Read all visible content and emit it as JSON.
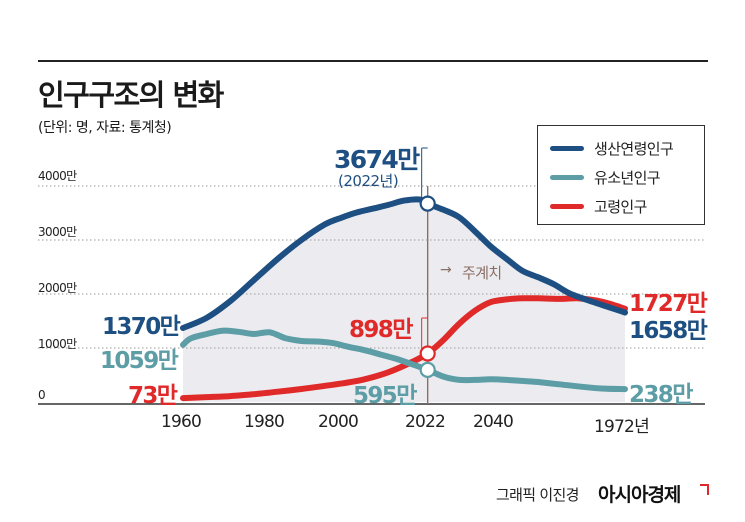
{
  "title": "인구구조의 변화",
  "unit_note": "(단위: 명, 자료: 통계청)",
  "credit": "그래픽 이진경",
  "brand": "아시아경제",
  "colors": {
    "working": "#1e4f82",
    "youth": "#5c9da6",
    "elderly": "#e02a2a",
    "marker": "#8a6f66",
    "band": "#ececf0"
  },
  "peak_annotation": {
    "value": "3674만",
    "year": "(2022년)"
  },
  "estimate_label": "주계치",
  "value_labels": {
    "working_start": "1370만",
    "working_end": "1658만",
    "youth_start": "1059만",
    "youth_2022": "595만",
    "youth_end": "238만",
    "elderly_start": "73만",
    "elderly_2022": "898만",
    "elderly_end": "1727만"
  },
  "chart_data": {
    "type": "line",
    "title": "인구구조의 변화",
    "ylabel": "",
    "xlabel": "",
    "y_ticks": [
      "0",
      "1000만",
      "2000만",
      "3000만",
      "4000만"
    ],
    "x_ticks": [
      "1960",
      "1980",
      "2000",
      "2022",
      "2040",
      "1972년"
    ],
    "ylim": [
      0,
      4000
    ],
    "xlim": [
      1960,
      2072
    ],
    "grid": "dotted horizontal",
    "legend_position": "top-right",
    "series": [
      {
        "name": "생산연령인구",
        "key": "working",
        "points": [
          [
            1960,
            1370
          ],
          [
            1966,
            1560
          ],
          [
            1972,
            1870
          ],
          [
            1978,
            2260
          ],
          [
            1984,
            2650
          ],
          [
            1990,
            3000
          ],
          [
            1996,
            3290
          ],
          [
            2000,
            3410
          ],
          [
            2004,
            3510
          ],
          [
            2008,
            3580
          ],
          [
            2012,
            3650
          ],
          [
            2016,
            3730
          ],
          [
            2020,
            3750
          ],
          [
            2022,
            3674
          ],
          [
            2026,
            3560
          ],
          [
            2030,
            3420
          ],
          [
            2034,
            3160
          ],
          [
            2038,
            2880
          ],
          [
            2042,
            2650
          ],
          [
            2046,
            2430
          ],
          [
            2050,
            2310
          ],
          [
            2054,
            2180
          ],
          [
            2058,
            2010
          ],
          [
            2064,
            1850
          ],
          [
            2072,
            1658
          ]
        ]
      },
      {
        "name": "유소년인구",
        "key": "youth",
        "points": [
          [
            1960,
            1059
          ],
          [
            1962,
            1180
          ],
          [
            1966,
            1260
          ],
          [
            1970,
            1320
          ],
          [
            1974,
            1300
          ],
          [
            1978,
            1260
          ],
          [
            1982,
            1290
          ],
          [
            1986,
            1180
          ],
          [
            1990,
            1130
          ],
          [
            1994,
            1120
          ],
          [
            1998,
            1090
          ],
          [
            2002,
            1020
          ],
          [
            2006,
            960
          ],
          [
            2010,
            880
          ],
          [
            2014,
            800
          ],
          [
            2018,
            700
          ],
          [
            2022,
            595
          ],
          [
            2026,
            470
          ],
          [
            2030,
            410
          ],
          [
            2034,
            410
          ],
          [
            2038,
            420
          ],
          [
            2042,
            410
          ],
          [
            2046,
            390
          ],
          [
            2050,
            370
          ],
          [
            2055,
            330
          ],
          [
            2060,
            290
          ],
          [
            2066,
            250
          ],
          [
            2072,
            238
          ]
        ]
      },
      {
        "name": "고령인구",
        "key": "elderly",
        "points": [
          [
            1960,
            73
          ],
          [
            1966,
            90
          ],
          [
            1972,
            110
          ],
          [
            1978,
            145
          ],
          [
            1984,
            190
          ],
          [
            1990,
            240
          ],
          [
            1996,
            300
          ],
          [
            2000,
            340
          ],
          [
            2006,
            420
          ],
          [
            2012,
            550
          ],
          [
            2018,
            740
          ],
          [
            2022,
            898
          ],
          [
            2026,
            1150
          ],
          [
            2030,
            1450
          ],
          [
            2034,
            1690
          ],
          [
            2038,
            1850
          ],
          [
            2042,
            1900
          ],
          [
            2046,
            1920
          ],
          [
            2050,
            1920
          ],
          [
            2056,
            1910
          ],
          [
            2060,
            1920
          ],
          [
            2066,
            1860
          ],
          [
            2072,
            1727
          ]
        ]
      }
    ],
    "annotations": [
      {
        "x": 2022,
        "series": "working",
        "value": 3674
      },
      {
        "x": 2022,
        "series": "elderly",
        "value": 898
      },
      {
        "x": 2022,
        "series": "youth",
        "value": 595
      }
    ],
    "projection_start": 2022
  }
}
